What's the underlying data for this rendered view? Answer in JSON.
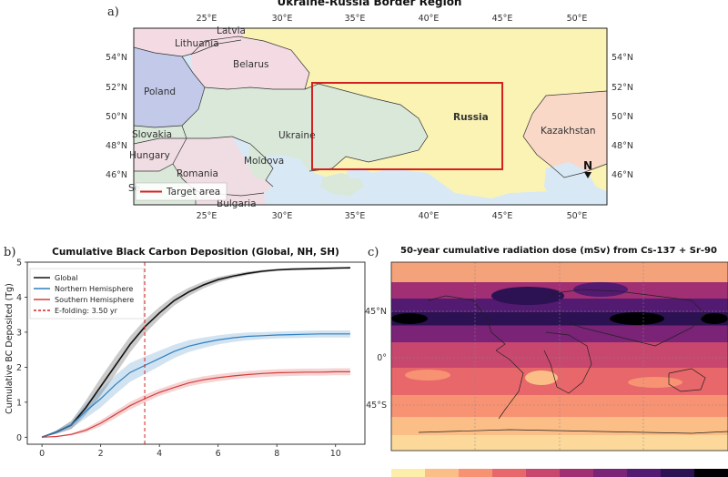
{
  "panel_a": {
    "label": "a)",
    "title": "Ukraine-Russia Border Region",
    "lon_ticks": [
      "25°E",
      "30°E",
      "35°E",
      "40°E",
      "45°E",
      "50°E"
    ],
    "lat_ticks": [
      "54°N",
      "52°N",
      "50°N",
      "48°N",
      "46°N"
    ],
    "countries": [
      "Latvia",
      "Lithuania",
      "Belarus",
      "Poland",
      "Ukraine",
      "Russia",
      "Slovakia",
      "Hungary",
      "Moldova",
      "Romania",
      "Kazakhstan",
      "Se",
      "Bulgaria"
    ],
    "north_label": "N",
    "legend": "Target area",
    "colors": {
      "ocean": "#d8e9f5",
      "russia": "#fbf3b4",
      "ukraine": "#d9e8d8",
      "belarus": "#f4dbe3",
      "poland": "#c2c9e9",
      "romania": "#f0dde3",
      "kazakhstan": "#f9d8c8",
      "target": "#d42020"
    }
  },
  "panel_b": {
    "label": "b)",
    "chart_data": {
      "type": "line",
      "title": "Cumulative Black Carbon Deposition (Global, NH, SH)",
      "xlabel": "",
      "ylabel": "Cumulative BC Deposited (Tg)",
      "xlim": [
        -0.5,
        11
      ],
      "ylim": [
        -0.2,
        5
      ],
      "xticks": [
        0,
        2,
        4,
        6,
        8,
        10
      ],
      "yticks": [
        0,
        1,
        2,
        3,
        4,
        5
      ],
      "x": [
        0,
        0.5,
        1,
        1.5,
        2,
        2.5,
        3,
        3.5,
        4,
        4.5,
        5,
        5.5,
        6,
        6.5,
        7,
        7.5,
        8,
        8.5,
        9,
        9.5,
        10,
        10.5
      ],
      "series": [
        {
          "name": "Global",
          "color": "#111111",
          "values": [
            0,
            0.15,
            0.35,
            0.85,
            1.45,
            2.05,
            2.65,
            3.15,
            3.55,
            3.9,
            4.15,
            4.35,
            4.5,
            4.6,
            4.68,
            4.74,
            4.78,
            4.8,
            4.81,
            4.82,
            4.83,
            4.84
          ],
          "band": [
            0,
            0.05,
            0.12,
            0.2,
            0.25,
            0.25,
            0.23,
            0.2,
            0.17,
            0.14,
            0.12,
            0.1,
            0.08,
            0.06,
            0.05,
            0.04,
            0.03,
            0.03,
            0.03,
            0.03,
            0.03,
            0.03
          ]
        },
        {
          "name": "Northern Hemisphere",
          "color": "#2e7fc0",
          "values": [
            0,
            0.15,
            0.35,
            0.75,
            1.1,
            1.5,
            1.85,
            2.05,
            2.25,
            2.45,
            2.6,
            2.7,
            2.78,
            2.84,
            2.88,
            2.9,
            2.92,
            2.93,
            2.94,
            2.95,
            2.95,
            2.95
          ],
          "band": [
            0,
            0.05,
            0.1,
            0.2,
            0.25,
            0.27,
            0.27,
            0.25,
            0.22,
            0.19,
            0.17,
            0.15,
            0.13,
            0.12,
            0.11,
            0.1,
            0.1,
            0.1,
            0.1,
            0.1,
            0.1,
            0.1
          ]
        },
        {
          "name": "Southern Hemisphere",
          "color": "#d43d3d",
          "values": [
            0,
            0.02,
            0.08,
            0.2,
            0.4,
            0.65,
            0.9,
            1.1,
            1.28,
            1.42,
            1.55,
            1.64,
            1.7,
            1.75,
            1.79,
            1.82,
            1.84,
            1.85,
            1.86,
            1.86,
            1.87,
            1.87
          ],
          "band": [
            0,
            0.01,
            0.03,
            0.06,
            0.09,
            0.1,
            0.11,
            0.11,
            0.1,
            0.1,
            0.1,
            0.1,
            0.1,
            0.1,
            0.1,
            0.1,
            0.1,
            0.1,
            0.1,
            0.1,
            0.1,
            0.1
          ]
        }
      ],
      "vline": {
        "name": "E-folding: 3.50 yr",
        "x": 3.5,
        "color": "#d42020"
      },
      "legend_position": "top-left",
      "grid": false
    }
  },
  "panel_c": {
    "label": "c)",
    "title": "50-year cumulative radiation dose (mSv) from Cs-137 + Sr-90",
    "lat_ticks": [
      "45°N",
      "0°",
      "45°S"
    ],
    "colorbar_colors": [
      "#fcedaa",
      "#fbbe86",
      "#f79373",
      "#e8676a",
      "#c8476f",
      "#a02f74",
      "#7a2377",
      "#521a70",
      "#2c1153",
      "#000004"
    ]
  }
}
